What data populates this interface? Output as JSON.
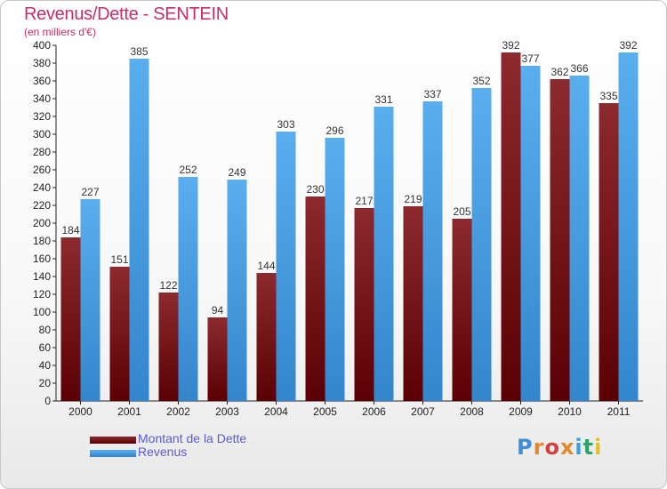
{
  "header": {
    "title": "Revenus/Dette - SENTEIN",
    "subtitle": "(en milliers d'€)"
  },
  "legend": [
    {
      "label": "Montant de la Dette",
      "color": "#6e0d12"
    },
    {
      "label": "Revenus",
      "color": "#4ea6ea"
    }
  ],
  "logo": {
    "text": "Proxiti",
    "colors": [
      "#3e8ed8",
      "#e08a2b",
      "#d34040",
      "#e08a2b",
      "#3e9fd8",
      "#2aa66b",
      "#e0c12b"
    ]
  },
  "chart_data": {
    "type": "bar",
    "categories": [
      "2000",
      "2001",
      "2002",
      "2003",
      "2004",
      "2005",
      "2006",
      "2007",
      "2008",
      "2009",
      "2010",
      "2011"
    ],
    "series": [
      {
        "name": "Montant de la Dette",
        "color": "#6e0d12",
        "values": [
          184,
          151,
          122,
          94,
          144,
          230,
          217,
          219,
          205,
          392,
          362,
          335
        ]
      },
      {
        "name": "Revenus",
        "color": "#4ea6ea",
        "values": [
          227,
          385,
          252,
          249,
          303,
          296,
          331,
          337,
          352,
          377,
          366,
          392
        ]
      }
    ],
    "ylim": [
      0,
      400
    ],
    "ytick_step": 20,
    "grid": false
  }
}
